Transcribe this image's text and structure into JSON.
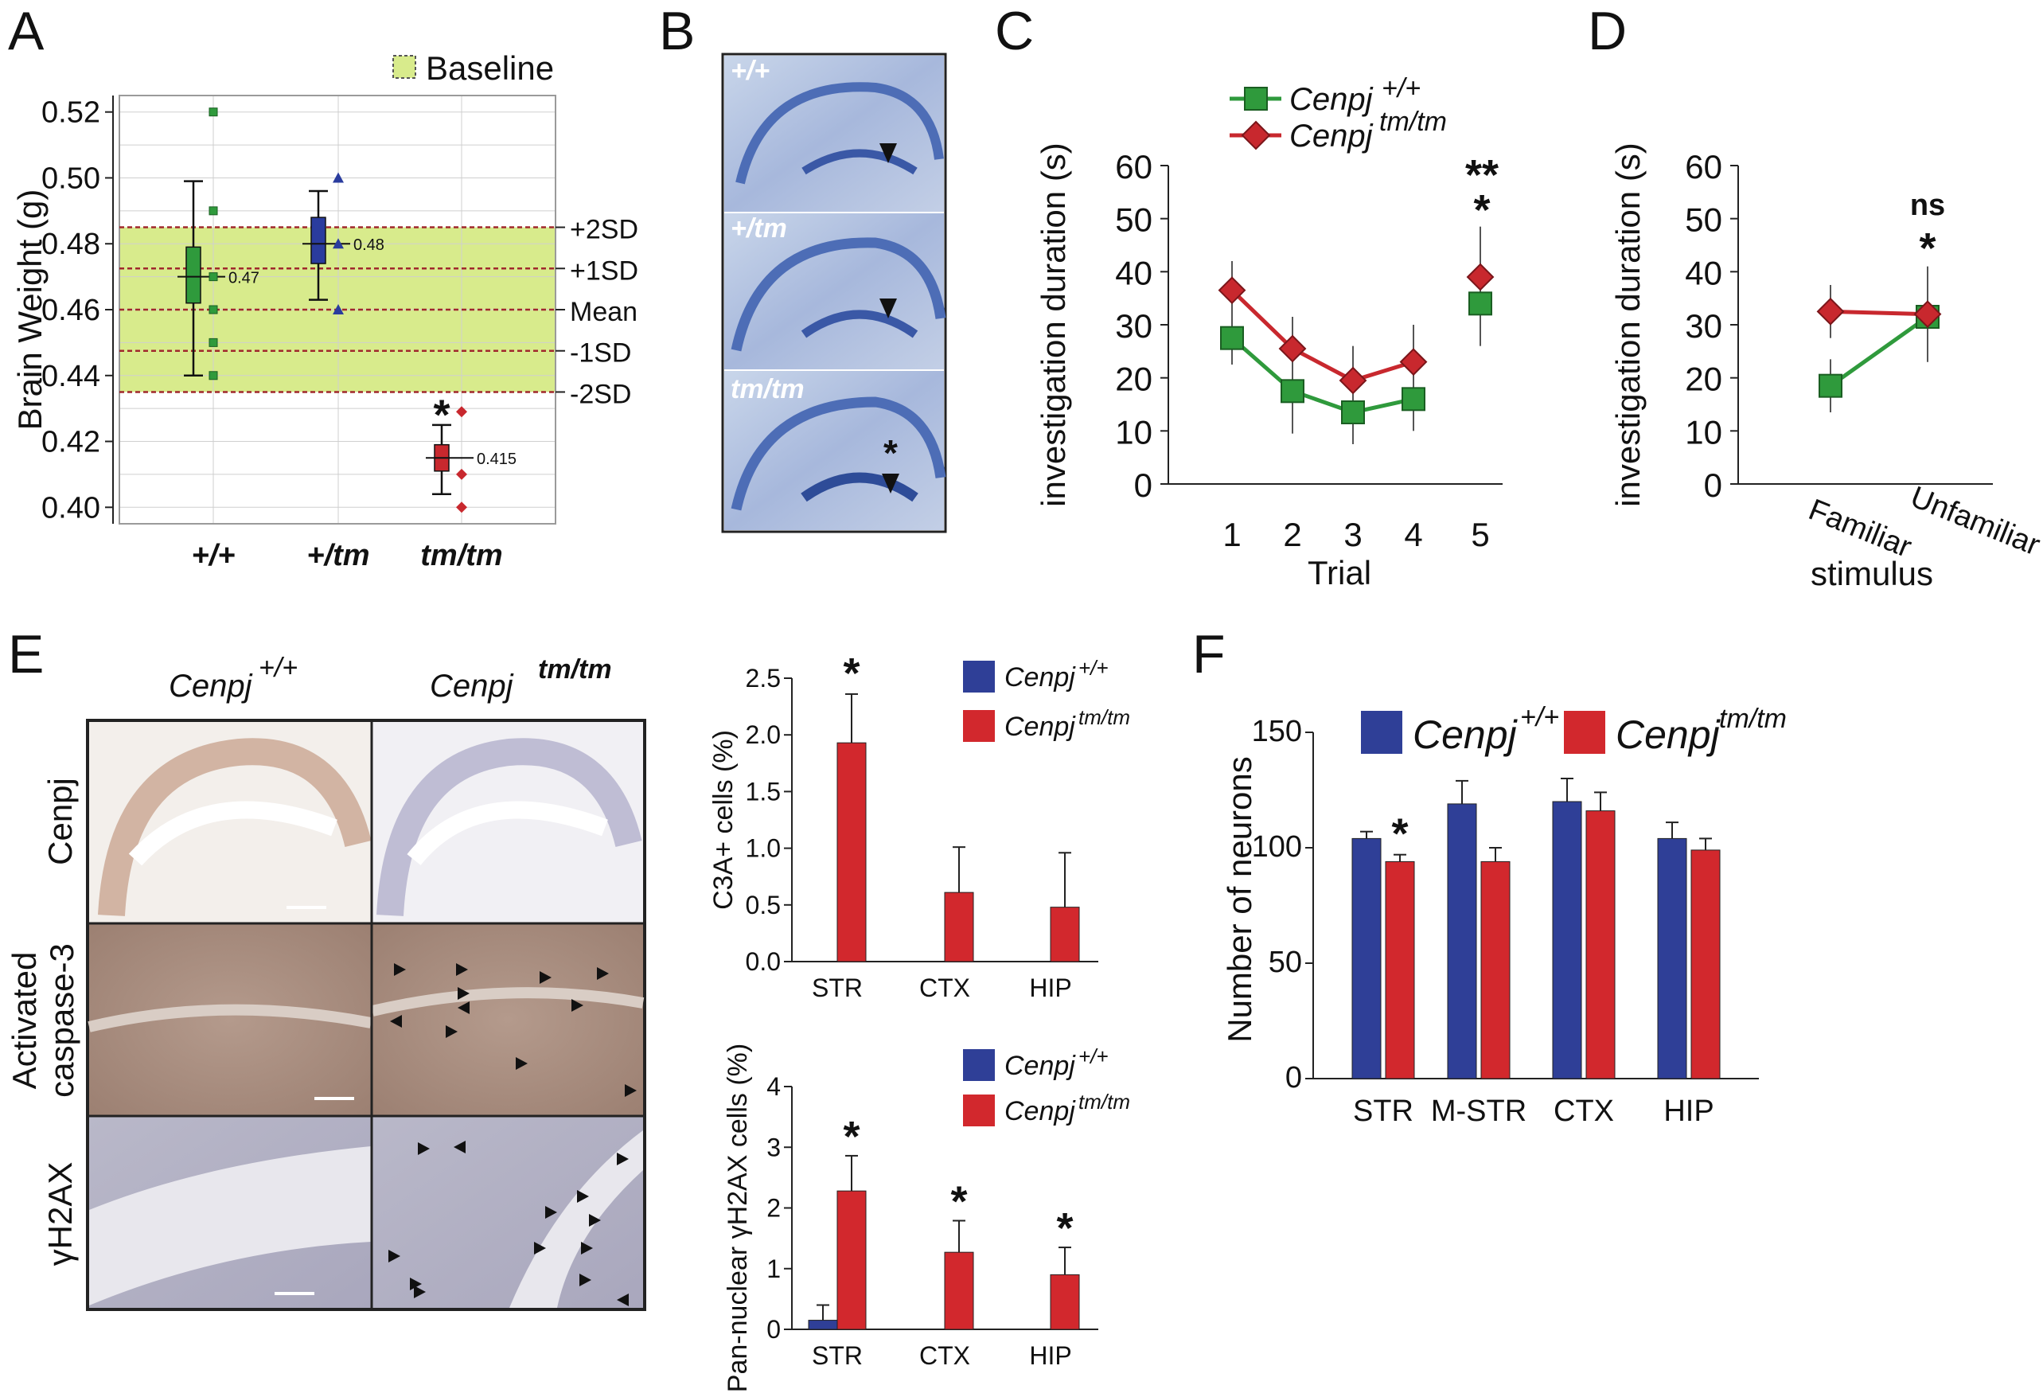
{
  "panel_labels": {
    "A": "A",
    "B": "B",
    "C": "C",
    "D": "D",
    "E": "E",
    "F": "F"
  },
  "colors": {
    "wt_green": "#2f9a3c",
    "het_blue": "#2a3c9e",
    "mut_red": "#c8282e",
    "red_bar": "#d2282d",
    "blue_bar": "#2f3f97",
    "baseline_fill": "#d8eb8c",
    "sd_line": "#a0282d",
    "histo_blue": "#3c5fae"
  },
  "histology": {
    "b_labels": [
      "+/+",
      "+/tm",
      "tm/tm"
    ],
    "e_col_headers": [
      {
        "gene": "Cenpj",
        "sup": "+/+"
      },
      {
        "gene": "Cenpj",
        "sup": "tm/tm"
      }
    ],
    "e_row_labels": [
      [
        "Cenpj"
      ],
      [
        "Activated",
        "caspase-3"
      ],
      [
        "γH2AX"
      ]
    ]
  },
  "chart_data": [
    {
      "id": "A",
      "type": "scatter",
      "ylabel": "Brain Weight (g)",
      "ylim": [
        0.395,
        0.525
      ],
      "yticks": [
        "0.52",
        "0.50",
        "0.48",
        "0.46",
        "0.44",
        "0.42",
        "0.40"
      ],
      "categories": [
        "+/+",
        "+/tm",
        "tm/tm"
      ],
      "legend": "Baseline",
      "baseline": {
        "mean": 0.46,
        "sd": 0.0125
      },
      "sd_labels": [
        "+2SD",
        "+1SD",
        "Mean",
        "-1SD",
        "-2SD"
      ],
      "series": [
        {
          "category": "+/+",
          "median": 0.47,
          "median_label": "0.47",
          "q1": 0.462,
          "q3": 0.479,
          "min": 0.44,
          "max": 0.499,
          "points": [
            0.52,
            0.49,
            0.47,
            0.46,
            0.45,
            0.44
          ]
        },
        {
          "category": "+/tm",
          "median": 0.48,
          "median_label": "0.48",
          "q1": 0.474,
          "q3": 0.488,
          "min": 0.463,
          "max": 0.496,
          "points": [
            0.5,
            0.48,
            0.46
          ]
        },
        {
          "category": "tm/tm",
          "median": 0.415,
          "median_label": "0.415",
          "q1": 0.411,
          "q3": 0.419,
          "min": 0.404,
          "max": 0.425,
          "points": [
            0.429,
            0.41,
            0.4
          ]
        }
      ],
      "annotations": [
        "*"
      ]
    },
    {
      "id": "C",
      "type": "line",
      "xlabel": "Trial",
      "ylabel": "investigation duration (s)",
      "ylim": [
        0,
        60
      ],
      "yticks": [
        0,
        10,
        20,
        30,
        40,
        50,
        60
      ],
      "x": [
        1,
        2,
        3,
        4,
        5
      ],
      "series": [
        {
          "gene": "Cenpj",
          "name": "+/+",
          "values": [
            27.5,
            17.5,
            13.5,
            16,
            34
          ],
          "err": [
            5,
            8,
            6,
            6,
            8
          ],
          "connected": [
            1,
            2,
            3,
            4
          ]
        },
        {
          "gene": "Cenpj",
          "name": "tm/tm",
          "values": [
            36.5,
            25.5,
            19.5,
            23,
            39
          ],
          "err": [
            5.5,
            6,
            6.5,
            7,
            9.5
          ],
          "connected": [
            1,
            2,
            3,
            4
          ]
        }
      ],
      "annotations": [
        "**",
        "*"
      ]
    },
    {
      "id": "D",
      "type": "line",
      "xlabel": "stimulus",
      "ylabel": "investigation duration (s)",
      "ylim": [
        0,
        60
      ],
      "yticks": [
        0,
        10,
        20,
        30,
        40,
        50,
        60
      ],
      "categories": [
        "Familiar",
        "Unfamiliar"
      ],
      "series": [
        {
          "color": "green",
          "values": [
            18.5,
            31.5
          ],
          "err": [
            5,
            8.5
          ]
        },
        {
          "color": "red",
          "values": [
            32.5,
            32
          ],
          "err": [
            5,
            9
          ]
        }
      ],
      "annotations": [
        "ns",
        "*"
      ]
    },
    {
      "id": "E-top",
      "type": "bar",
      "ylabel": "C3A+ cells (%)",
      "ylim": [
        0,
        2.5
      ],
      "yticks": [
        "0.0",
        "0.5",
        "1.0",
        "1.5",
        "2.0",
        "2.5"
      ],
      "categories": [
        "STR",
        "CTX",
        "HIP"
      ],
      "series": [
        {
          "gene": "Cenpj",
          "name": "+/+",
          "values": [
            0,
            0,
            0
          ],
          "err": [
            0,
            0,
            0
          ]
        },
        {
          "gene": "Cenpj",
          "name": "tm/tm",
          "values": [
            1.93,
            0.61,
            0.48
          ],
          "err": [
            0.43,
            0.4,
            0.48
          ]
        }
      ],
      "annotations": [
        "*"
      ]
    },
    {
      "id": "E-bottom",
      "type": "bar",
      "ylabel": "Pan-nuclear γH2AX cells (%)",
      "ylim": [
        0,
        4
      ],
      "yticks": [
        "0",
        "1",
        "2",
        "3",
        "4"
      ],
      "categories": [
        "STR",
        "CTX",
        "HIP"
      ],
      "series": [
        {
          "gene": "Cenpj",
          "name": "+/+",
          "values": [
            0.15,
            0,
            0
          ],
          "err": [
            0.25,
            0,
            0
          ]
        },
        {
          "gene": "Cenpj",
          "name": "tm/tm",
          "values": [
            2.28,
            1.27,
            0.9
          ],
          "err": [
            0.58,
            0.52,
            0.45
          ]
        }
      ],
      "annotations": [
        "*",
        "*",
        "*"
      ]
    },
    {
      "id": "F",
      "type": "bar",
      "ylabel": "Number of neurons",
      "ylim": [
        0,
        150
      ],
      "yticks": [
        0,
        50,
        100,
        150
      ],
      "categories": [
        "STR",
        "M-STR",
        "CTX",
        "HIP"
      ],
      "series": [
        {
          "gene": "Cenpj",
          "name": "+/+",
          "values": [
            104,
            119,
            120,
            104
          ],
          "err": [
            3,
            10,
            10,
            7
          ]
        },
        {
          "gene": "Cenpj",
          "name": "tm/tm",
          "values": [
            94,
            94,
            116,
            99
          ],
          "err": [
            3,
            6,
            8,
            5
          ]
        }
      ],
      "annotations": [
        "*"
      ]
    }
  ]
}
